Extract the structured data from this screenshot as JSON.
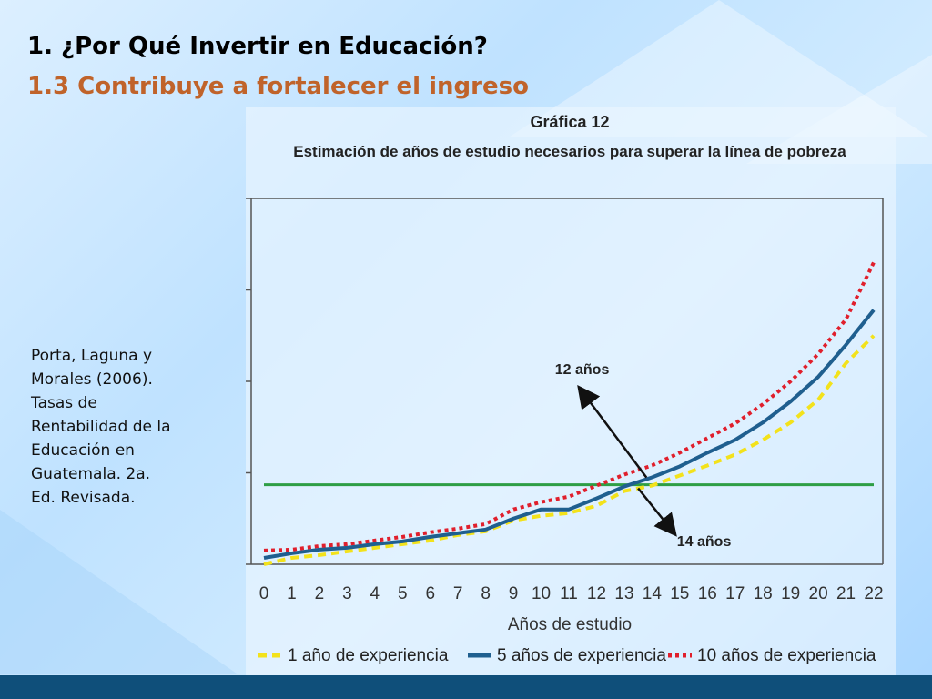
{
  "slide": {
    "title": "1.  ¿Por Qué Invertir en Educación?",
    "subtitle": "1.3 Contribuye a fortalecer el ingreso",
    "citation_lines": [
      "Porta, Laguna y",
      "Morales (2006).",
      "Tasas de",
      "Rentabilidad de la",
      "Educación en",
      "Guatemala. 2a.",
      "Ed. Revisada."
    ],
    "colors": {
      "background": "#bfe2ff",
      "subtitle": "#c0632a",
      "bottom_bar": "#0f4f7a"
    }
  },
  "chart_data": {
    "type": "line",
    "title": "Gráfica 12",
    "subtitle": "Estimación de años de estudio necesarios para superar la línea de pobreza",
    "xlabel": "Años  de  estudio",
    "ylabel": "",
    "x": [
      0,
      1,
      2,
      3,
      4,
      5,
      6,
      7,
      8,
      9,
      10,
      11,
      12,
      13,
      14,
      15,
      16,
      17,
      18,
      19,
      20,
      21,
      22
    ],
    "xlim": [
      0,
      22
    ],
    "ylim": [
      0,
      4
    ],
    "yticks": [
      0,
      1,
      2,
      3,
      4
    ],
    "series": [
      {
        "name": "1 año de experiencia",
        "color": "#f3e21b",
        "style": "dashed",
        "values": [
          0.0,
          0.07,
          0.1,
          0.14,
          0.18,
          0.22,
          0.26,
          0.32,
          0.36,
          0.48,
          0.53,
          0.56,
          0.64,
          0.8,
          0.86,
          0.97,
          1.08,
          1.2,
          1.36,
          1.55,
          1.8,
          2.2,
          2.5
        ]
      },
      {
        "name": "5 años de experiencia",
        "color": "#1f5f8f",
        "style": "solid",
        "values": [
          0.07,
          0.12,
          0.16,
          0.18,
          0.22,
          0.25,
          0.3,
          0.34,
          0.38,
          0.5,
          0.6,
          0.6,
          0.72,
          0.85,
          0.95,
          1.07,
          1.22,
          1.36,
          1.55,
          1.78,
          2.05,
          2.4,
          2.78
        ]
      },
      {
        "name": "10 años de experiencia",
        "color": "#e01f2c",
        "style": "dotted",
        "values": [
          0.15,
          0.16,
          0.2,
          0.22,
          0.26,
          0.3,
          0.35,
          0.39,
          0.44,
          0.6,
          0.68,
          0.74,
          0.86,
          0.98,
          1.08,
          1.22,
          1.38,
          1.54,
          1.75,
          2.0,
          2.3,
          2.68,
          3.3
        ]
      }
    ],
    "reference_line": {
      "label": "",
      "value": 0.87,
      "color": "#2e9e45"
    },
    "annotations": [
      {
        "text": "12 años",
        "x": 12
      },
      {
        "text": "14 años",
        "x": 14
      }
    ],
    "legend": "bottom",
    "grid": false
  }
}
